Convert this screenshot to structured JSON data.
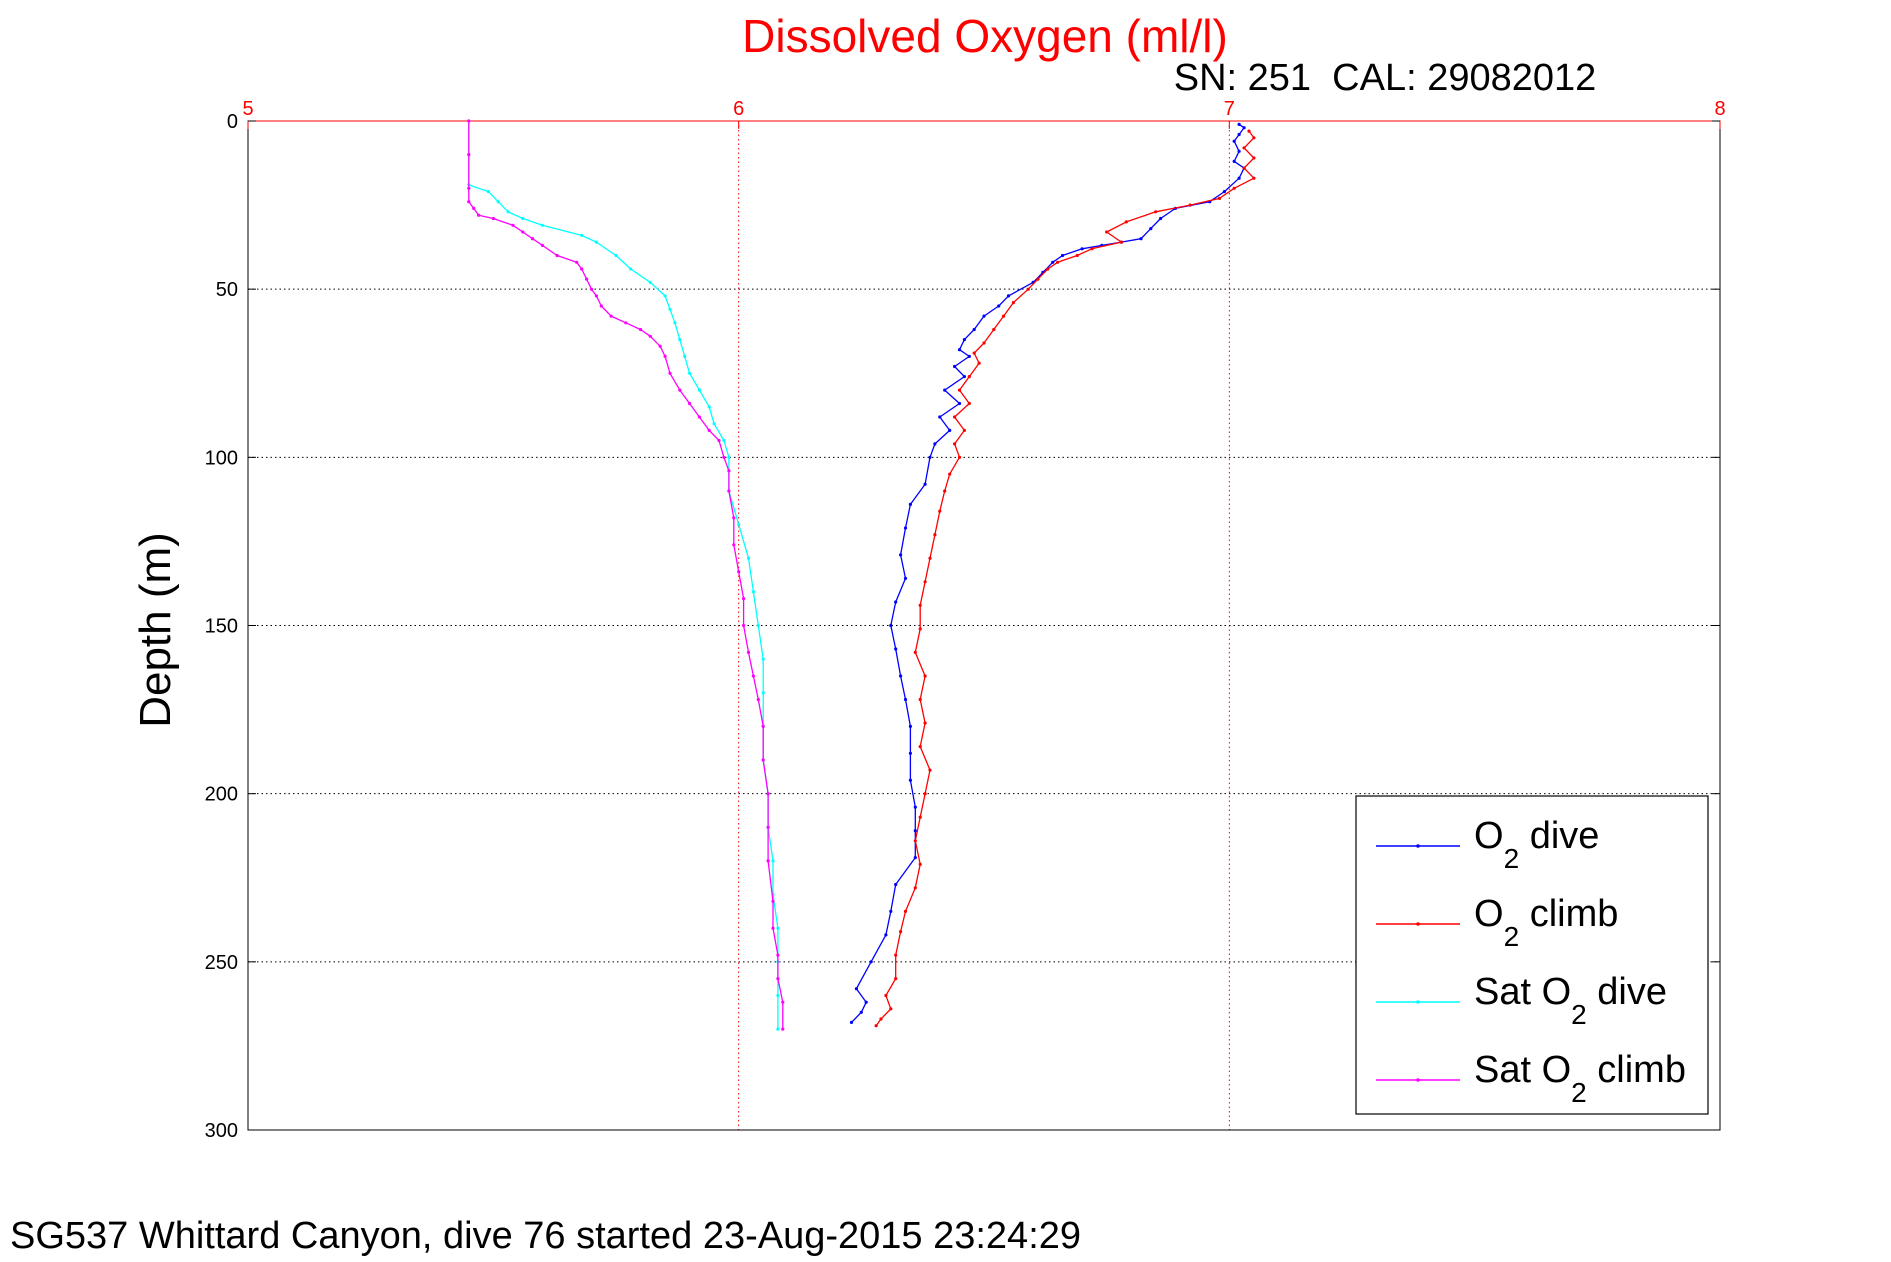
{
  "chart_data": {
    "type": "line",
    "title": "Dissolved Oxygen (ml/l)",
    "subtitle": "SN: 251  CAL: 29082012",
    "footer": "SG537 Whittard Canyon, dive 76 started 23-Aug-2015 23:24:29",
    "ylabel": "Depth (m)",
    "xlim": [
      5,
      8
    ],
    "ylim": [
      0,
      300
    ],
    "y_reversed": true,
    "x_axis_position": "top",
    "xticks": [
      5,
      6,
      7,
      8
    ],
    "yticks": [
      0,
      50,
      100,
      150,
      200,
      250,
      300
    ],
    "grid": true,
    "legend_position": "bottom-right",
    "colors": {
      "title": "#ff0000",
      "xticks": "#ff0000",
      "vertical_grid": "#ff0000",
      "horizontal_grid": "#000000"
    },
    "series": [
      {
        "name": "O2 dive",
        "legend": {
          "main": "O",
          "sub": "2",
          "rest": " dive"
        },
        "color": "#0000ff",
        "points": [
          [
            7.02,
            1
          ],
          [
            7.03,
            2
          ],
          [
            7.02,
            4
          ],
          [
            7.01,
            6
          ],
          [
            7.02,
            9
          ],
          [
            7.01,
            12
          ],
          [
            7.03,
            14
          ],
          [
            7.02,
            17
          ],
          [
            6.99,
            21
          ],
          [
            6.96,
            24
          ],
          [
            6.89,
            26
          ],
          [
            6.86,
            29
          ],
          [
            6.84,
            32
          ],
          [
            6.82,
            35
          ],
          [
            6.78,
            36
          ],
          [
            6.74,
            37
          ],
          [
            6.7,
            38
          ],
          [
            6.66,
            40
          ],
          [
            6.64,
            42
          ],
          [
            6.62,
            45
          ],
          [
            6.6,
            48
          ],
          [
            6.55,
            52
          ],
          [
            6.53,
            55
          ],
          [
            6.5,
            58
          ],
          [
            6.48,
            62
          ],
          [
            6.46,
            65
          ],
          [
            6.45,
            68
          ],
          [
            6.47,
            70
          ],
          [
            6.44,
            73
          ],
          [
            6.46,
            76
          ],
          [
            6.42,
            80
          ],
          [
            6.45,
            84
          ],
          [
            6.41,
            88
          ],
          [
            6.43,
            92
          ],
          [
            6.4,
            96
          ],
          [
            6.39,
            100
          ],
          [
            6.38,
            108
          ],
          [
            6.35,
            114
          ],
          [
            6.34,
            121
          ],
          [
            6.33,
            129
          ],
          [
            6.34,
            136
          ],
          [
            6.32,
            143
          ],
          [
            6.31,
            150
          ],
          [
            6.32,
            157
          ],
          [
            6.33,
            165
          ],
          [
            6.34,
            172
          ],
          [
            6.35,
            180
          ],
          [
            6.35,
            188
          ],
          [
            6.35,
            196
          ],
          [
            6.36,
            204
          ],
          [
            6.36,
            211
          ],
          [
            6.36,
            219
          ],
          [
            6.32,
            227
          ],
          [
            6.31,
            235
          ],
          [
            6.3,
            242
          ],
          [
            6.27,
            250
          ],
          [
            6.24,
            258
          ],
          [
            6.26,
            262
          ],
          [
            6.25,
            265
          ],
          [
            6.23,
            268
          ]
        ]
      },
      {
        "name": "O2 climb",
        "legend": {
          "main": "O",
          "sub": "2",
          "rest": " climb"
        },
        "color": "#ff0000",
        "points": [
          [
            6.28,
            269
          ],
          [
            6.29,
            267
          ],
          [
            6.31,
            264
          ],
          [
            6.3,
            260
          ],
          [
            6.32,
            255
          ],
          [
            6.32,
            248
          ],
          [
            6.33,
            241
          ],
          [
            6.34,
            235
          ],
          [
            6.36,
            228
          ],
          [
            6.37,
            221
          ],
          [
            6.36,
            214
          ],
          [
            6.37,
            207
          ],
          [
            6.38,
            200
          ],
          [
            6.39,
            193
          ],
          [
            6.37,
            186
          ],
          [
            6.38,
            179
          ],
          [
            6.37,
            172
          ],
          [
            6.38,
            165
          ],
          [
            6.36,
            158
          ],
          [
            6.37,
            151
          ],
          [
            6.37,
            144
          ],
          [
            6.38,
            137
          ],
          [
            6.39,
            130
          ],
          [
            6.4,
            123
          ],
          [
            6.41,
            116
          ],
          [
            6.42,
            110
          ],
          [
            6.43,
            105
          ],
          [
            6.45,
            100
          ],
          [
            6.44,
            96
          ],
          [
            6.46,
            92
          ],
          [
            6.44,
            88
          ],
          [
            6.47,
            84
          ],
          [
            6.45,
            80
          ],
          [
            6.47,
            76
          ],
          [
            6.49,
            72
          ],
          [
            6.48,
            69
          ],
          [
            6.5,
            66
          ],
          [
            6.52,
            62
          ],
          [
            6.54,
            58
          ],
          [
            6.56,
            54
          ],
          [
            6.59,
            50
          ],
          [
            6.61,
            47
          ],
          [
            6.63,
            44
          ],
          [
            6.65,
            42
          ],
          [
            6.69,
            40
          ],
          [
            6.72,
            38
          ],
          [
            6.78,
            36
          ],
          [
            6.75,
            33
          ],
          [
            6.79,
            30
          ],
          [
            6.85,
            27
          ],
          [
            6.92,
            25
          ],
          [
            6.98,
            23
          ],
          [
            7.01,
            20
          ],
          [
            7.05,
            17
          ],
          [
            7.03,
            14
          ],
          [
            7.05,
            11
          ],
          [
            7.03,
            8
          ],
          [
            7.05,
            5
          ],
          [
            7.04,
            3
          ]
        ]
      },
      {
        "name": "Sat O2 dive",
        "legend": {
          "main": "Sat O",
          "sub": "2",
          "rest": " dive"
        },
        "color": "#00ffff",
        "points": [
          [
            5.45,
            0
          ],
          [
            5.45,
            10
          ],
          [
            5.45,
            19
          ],
          [
            5.49,
            21
          ],
          [
            5.51,
            24
          ],
          [
            5.53,
            27
          ],
          [
            5.56,
            29
          ],
          [
            5.6,
            31
          ],
          [
            5.68,
            34
          ],
          [
            5.71,
            36
          ],
          [
            5.75,
            40
          ],
          [
            5.78,
            44
          ],
          [
            5.82,
            48
          ],
          [
            5.85,
            52
          ],
          [
            5.86,
            56
          ],
          [
            5.87,
            60
          ],
          [
            5.88,
            65
          ],
          [
            5.89,
            70
          ],
          [
            5.9,
            75
          ],
          [
            5.92,
            80
          ],
          [
            5.94,
            85
          ],
          [
            5.95,
            90
          ],
          [
            5.97,
            95
          ],
          [
            5.98,
            100
          ],
          [
            5.98,
            110
          ],
          [
            6.0,
            120
          ],
          [
            6.02,
            130
          ],
          [
            6.03,
            140
          ],
          [
            6.04,
            150
          ],
          [
            6.05,
            160
          ],
          [
            6.05,
            170
          ],
          [
            6.05,
            180
          ],
          [
            6.05,
            190
          ],
          [
            6.06,
            200
          ],
          [
            6.06,
            210
          ],
          [
            6.07,
            220
          ],
          [
            6.07,
            230
          ],
          [
            6.08,
            240
          ],
          [
            6.08,
            250
          ],
          [
            6.08,
            260
          ],
          [
            6.08,
            270
          ]
        ]
      },
      {
        "name": "Sat O2 climb",
        "legend": {
          "main": "Sat O",
          "sub": "2",
          "rest": " climb"
        },
        "color": "#ff00ff",
        "points": [
          [
            6.09,
            270
          ],
          [
            6.09,
            262
          ],
          [
            6.08,
            255
          ],
          [
            6.08,
            248
          ],
          [
            6.07,
            240
          ],
          [
            6.07,
            232
          ],
          [
            6.06,
            220
          ],
          [
            6.06,
            210
          ],
          [
            6.06,
            200
          ],
          [
            6.05,
            190
          ],
          [
            6.05,
            180
          ],
          [
            6.04,
            172
          ],
          [
            6.03,
            165
          ],
          [
            6.02,
            158
          ],
          [
            6.01,
            150
          ],
          [
            6.01,
            142
          ],
          [
            6.0,
            134
          ],
          [
            5.99,
            126
          ],
          [
            5.99,
            118
          ],
          [
            5.98,
            110
          ],
          [
            5.98,
            104
          ],
          [
            5.97,
            100
          ],
          [
            5.96,
            95
          ],
          [
            5.94,
            92
          ],
          [
            5.92,
            88
          ],
          [
            5.9,
            84
          ],
          [
            5.88,
            80
          ],
          [
            5.86,
            75
          ],
          [
            5.85,
            70
          ],
          [
            5.84,
            67
          ],
          [
            5.82,
            64
          ],
          [
            5.8,
            62
          ],
          [
            5.77,
            60
          ],
          [
            5.74,
            58
          ],
          [
            5.72,
            55
          ],
          [
            5.71,
            52
          ],
          [
            5.7,
            50
          ],
          [
            5.69,
            47
          ],
          [
            5.68,
            44
          ],
          [
            5.67,
            42
          ],
          [
            5.63,
            40
          ],
          [
            5.6,
            37
          ],
          [
            5.58,
            35
          ],
          [
            5.56,
            33
          ],
          [
            5.54,
            31
          ],
          [
            5.5,
            29
          ],
          [
            5.47,
            28
          ],
          [
            5.46,
            26
          ],
          [
            5.45,
            24
          ],
          [
            5.45,
            20
          ],
          [
            5.45,
            10
          ],
          [
            5.45,
            0
          ]
        ]
      }
    ]
  }
}
